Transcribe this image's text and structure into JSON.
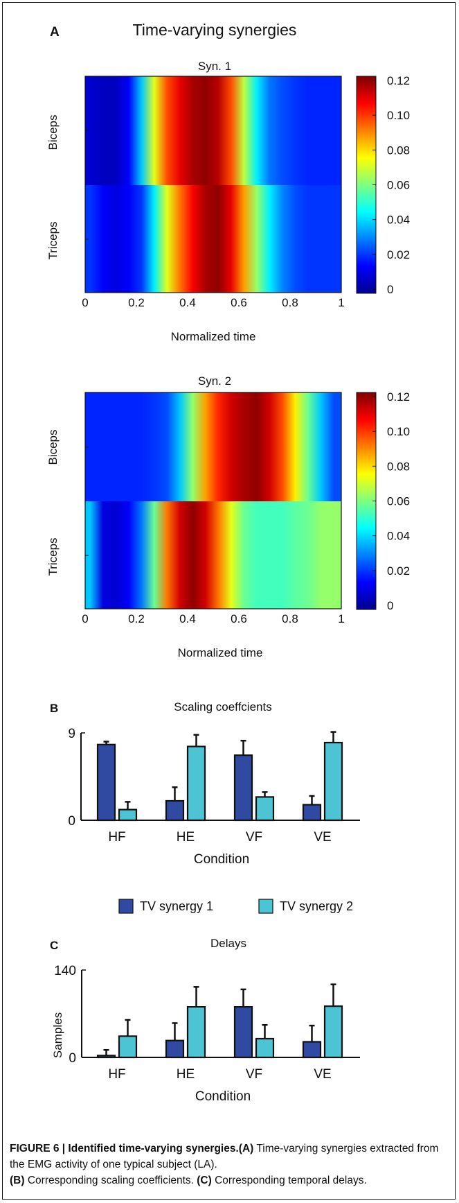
{
  "panel_labels": {
    "a": "A",
    "b": "B",
    "c": "C"
  },
  "panel_a_title": "Time-varying  synergies",
  "caption": {
    "fig_label": "FIGURE 6 | Identified time-varying synergies.",
    "a_tag": "(A)",
    "a_text": " Time-varying synergies extracted from the EMG activity of one typical subject (LA).",
    "b_tag": "(B)",
    "b_text": " Corresponding scaling coefficients.",
    "c_tag": "(C)",
    "c_text": " Corresponding temporal delays."
  },
  "chart_data": [
    {
      "type": "heatmap",
      "title": "Syn. 1",
      "xlabel": "Normalized time",
      "rows": [
        "Biceps",
        "Triceps"
      ],
      "xlim": [
        0,
        1
      ],
      "xticks": [
        "0",
        "0.2",
        "0.4",
        "0.6",
        "0.8",
        "1"
      ],
      "colorbar": {
        "range": [
          0,
          0.125
        ],
        "ticks": [
          "0.12",
          "0.10",
          "0.08",
          "0.06",
          "0.04",
          "0.02",
          "0"
        ],
        "colormap": "jet"
      },
      "x": [
        0.02,
        0.07,
        0.12,
        0.17,
        0.22,
        0.27,
        0.32,
        0.37,
        0.42,
        0.47,
        0.52,
        0.57,
        0.62,
        0.67,
        0.72,
        0.77,
        0.82,
        0.87,
        0.92,
        0.97
      ],
      "values": [
        [
          0.01,
          0.008,
          0.008,
          0.015,
          0.04,
          0.075,
          0.1,
          0.112,
          0.12,
          0.123,
          0.118,
          0.1,
          0.07,
          0.045,
          0.03,
          0.025,
          0.022,
          0.02,
          0.02,
          0.02
        ],
        [
          0.022,
          0.015,
          0.012,
          0.015,
          0.022,
          0.045,
          0.075,
          0.095,
          0.11,
          0.12,
          0.123,
          0.112,
          0.09,
          0.065,
          0.045,
          0.032,
          0.025,
          0.022,
          0.022,
          0.022
        ]
      ]
    },
    {
      "type": "heatmap",
      "title": "Syn. 2",
      "xlabel": "Normalized time",
      "rows": [
        "Biceps",
        "Triceps"
      ],
      "xlim": [
        0,
        1
      ],
      "xticks": [
        "0",
        "0.2",
        "0.4",
        "0.6",
        "0.8",
        "1"
      ],
      "colorbar": {
        "range": [
          0,
          0.125
        ],
        "ticks": [
          "0.12",
          "0.10",
          "0.08",
          "0.06",
          "0.04",
          "0.02",
          "0"
        ],
        "colormap": "jet"
      },
      "x": [
        0.02,
        0.07,
        0.12,
        0.17,
        0.22,
        0.27,
        0.32,
        0.37,
        0.42,
        0.47,
        0.52,
        0.57,
        0.62,
        0.67,
        0.72,
        0.77,
        0.82,
        0.87,
        0.92,
        0.97
      ],
      "values": [
        [
          0.02,
          0.02,
          0.02,
          0.02,
          0.02,
          0.022,
          0.025,
          0.04,
          0.065,
          0.09,
          0.105,
          0.115,
          0.12,
          0.123,
          0.115,
          0.1,
          0.08,
          0.06,
          0.04,
          0.025
        ],
        [
          0.04,
          0.012,
          0.01,
          0.015,
          0.03,
          0.06,
          0.095,
          0.115,
          0.123,
          0.115,
          0.095,
          0.075,
          0.06,
          0.055,
          0.055,
          0.055,
          0.058,
          0.06,
          0.065,
          0.065
        ]
      ]
    },
    {
      "type": "bar",
      "title": "Scaling coeffcients",
      "xlabel": "Condition",
      "ylabel": "",
      "ylim": [
        0,
        9
      ],
      "yticks": [
        "9",
        "0"
      ],
      "categories": [
        "HF",
        "HE",
        "VF",
        "VE"
      ],
      "series": [
        {
          "name": "TV synergy 1",
          "color": "#2f4aa0",
          "values": [
            7.8,
            2.0,
            6.7,
            1.6
          ],
          "errors": [
            0.3,
            1.4,
            1.5,
            0.9
          ]
        },
        {
          "name": "TV synergy 2",
          "color": "#4cc4d4",
          "values": [
            1.1,
            7.6,
            2.4,
            8.0
          ],
          "errors": [
            0.8,
            1.2,
            0.5,
            1.1
          ]
        }
      ]
    },
    {
      "type": "bar",
      "title": "Delays",
      "xlabel": "Condition",
      "ylabel": "Samples",
      "ylim": [
        0,
        140
      ],
      "yticks": [
        "140",
        "0"
      ],
      "categories": [
        "HF",
        "HE",
        "VF",
        "VE"
      ],
      "series": [
        {
          "name": "TV synergy 1",
          "color": "#2f4aa0",
          "values": [
            3,
            27,
            81,
            25
          ],
          "errors": [
            9,
            28,
            28,
            26
          ]
        },
        {
          "name": "TV synergy 2",
          "color": "#4cc4d4",
          "values": [
            34,
            81,
            30,
            82
          ],
          "errors": [
            26,
            32,
            22,
            35
          ]
        }
      ]
    }
  ]
}
